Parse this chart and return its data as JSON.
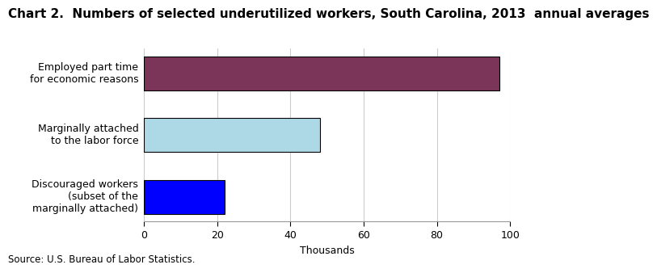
{
  "title": "Chart 2.  Numbers of selected underutilized workers, South Carolina, 2013  annual averages",
  "categories": [
    "Discouraged workers\n(subset of the\nmarginally attached)",
    "Marginally attached\nto the labor force",
    "Employed part time\nfor economic reasons"
  ],
  "values": [
    22,
    48,
    97
  ],
  "bar_colors": [
    "#0000FF",
    "#ADD8E6",
    "#7B3558"
  ],
  "xlim": [
    0,
    100
  ],
  "xticks": [
    0,
    20,
    40,
    60,
    80,
    100
  ],
  "xlabel": "Thousands",
  "source": "Source: U.S. Bureau of Labor Statistics.",
  "background_color": "#FFFFFF",
  "grid_color": "#CCCCCC",
  "bar_edgecolor": "#000000",
  "title_fontsize": 11,
  "label_fontsize": 9,
  "tick_fontsize": 9,
  "source_fontsize": 8.5
}
